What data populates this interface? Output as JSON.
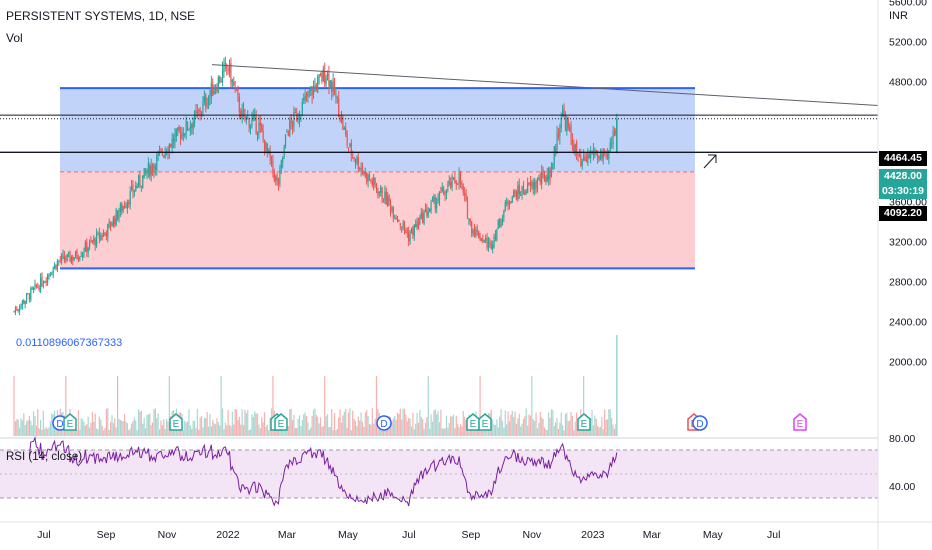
{
  "header": {
    "symbol_title": "PERSISTENT SYSTEMS, 1D, NSE",
    "vol_label": "Vol"
  },
  "price_axis": {
    "unit": "INR",
    "ticks": [
      "5600.00",
      "5200.00",
      "4800.00",
      "3600.00",
      "3200.00",
      "2800.00",
      "2400.00",
      "2000.00"
    ]
  },
  "rsi_axis": {
    "ticks": [
      "80.00",
      "40.00"
    ]
  },
  "badges": {
    "upper_line": "4464.45",
    "last_price": "4428.00",
    "countdown": "03:30:19",
    "lower_line": "4092.20"
  },
  "annotation": {
    "fib_text": "0.0110896067367333"
  },
  "rsi": {
    "label": "RSI (14, close)"
  },
  "time_axis": {
    "labels": [
      "Jul",
      "Sep",
      "Nov",
      "2022",
      "Mar",
      "May",
      "Jul",
      "Sep",
      "Nov",
      "2023",
      "Mar",
      "May",
      "Jul"
    ]
  },
  "events": [
    {
      "type": "D"
    },
    {
      "type": "E"
    },
    {
      "type": "E"
    },
    {
      "type": "E"
    },
    {
      "type": "E"
    },
    {
      "type": "D"
    },
    {
      "type": "E"
    },
    {
      "type": "E"
    },
    {
      "type": "E"
    },
    {
      "type": "E"
    },
    {
      "type": "D"
    },
    {
      "type": "E"
    }
  ],
  "colors": {
    "up": "#26a69a",
    "down": "#ef5350",
    "blue_zone": "#b3c8f7",
    "red_zone": "#fbc6c9",
    "zone_border": "#2962ff",
    "rsi_line": "#7b1fa2",
    "rsi_band": "#f3e5f5"
  },
  "chart_data": {
    "type": "candlestick",
    "symbol": "PERSISTENT SYSTEMS",
    "timeframe": "1D",
    "exchange": "NSE",
    "price_range": [
      1800,
      5800
    ],
    "x": [
      "2021-06-01",
      "2021-07-01",
      "2021-07-15",
      "2021-08-01",
      "2021-09-01",
      "2021-10-01",
      "2021-11-01",
      "2021-12-01",
      "2021-12-15",
      "2022-01-01",
      "2022-01-15",
      "2022-02-01",
      "2022-02-20",
      "2022-03-01",
      "2022-03-25",
      "2022-04-10",
      "2022-04-20",
      "2022-05-01",
      "2022-05-20",
      "2022-06-10",
      "2022-07-01",
      "2022-07-15",
      "2022-08-01",
      "2022-08-20",
      "2022-09-01",
      "2022-09-20",
      "2022-10-10",
      "2022-11-01",
      "2022-11-20",
      "2022-12-01",
      "2022-12-20",
      "2023-01-01",
      "2023-01-15",
      "2023-01-25"
    ],
    "close": [
      2500,
      2820,
      3000,
      3050,
      3300,
      3750,
      4150,
      4450,
      4700,
      4950,
      4450,
      4350,
      3750,
      4300,
      4700,
      4900,
      4600,
      4150,
      3850,
      3600,
      3250,
      3450,
      3650,
      3850,
      3350,
      3150,
      3650,
      3750,
      3900,
      4500,
      3950,
      4100,
      4000,
      4428
    ],
    "zones": {
      "blue_top": 4734,
      "blue_bottom": 3896,
      "red_bottom": 2930
    },
    "horizontal_lines": [
      4464.45,
      4428.0,
      4092.2
    ],
    "rsi": {
      "name": "RSI (14, close)",
      "levels": [
        70,
        30
      ],
      "last": 68
    }
  }
}
